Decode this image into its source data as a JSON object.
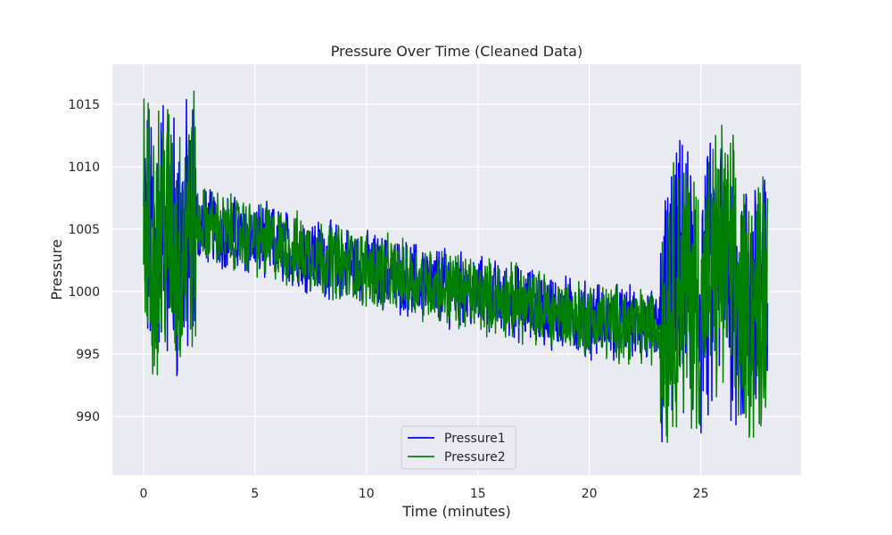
{
  "chart_data": {
    "type": "line",
    "title": "Pressure Over Time (Cleaned Data)",
    "xlabel": "Time (minutes)",
    "ylabel": "Pressure",
    "xlim": [
      -1.4,
      29.5
    ],
    "ylim": [
      985.3,
      1018.2
    ],
    "x_ticks": [
      0,
      5,
      10,
      15,
      20,
      25
    ],
    "y_ticks": [
      990,
      995,
      1000,
      1005,
      1010,
      1015
    ],
    "grid": true,
    "legend_position": "lower center",
    "series": [
      {
        "name": "Pressure1",
        "color": "#0000ff",
        "x": [
          0,
          0.5,
          1,
          1.5,
          2,
          2.3,
          3,
          5,
          7.5,
          10,
          12.5,
          15,
          17.5,
          20,
          22.5,
          23.2,
          24,
          25,
          26,
          27,
          28
        ],
        "values": [
          1005,
          1004,
          1006,
          1003,
          1005,
          1005.5,
          1005.2,
          1004.2,
          1003,
          1001.8,
          1000.8,
          999.8,
          998.8,
          997.8,
          997.2,
          997,
          1001,
          999,
          1003,
          998,
          1001
        ]
      },
      {
        "name": "Pressure2",
        "color": "#008000",
        "x": [
          0,
          0.5,
          1,
          1.5,
          2,
          2.3,
          3,
          5,
          7.5,
          10,
          12.5,
          15,
          17.5,
          20,
          22.5,
          23.2,
          24,
          25,
          26,
          27,
          28
        ],
        "values": [
          1005,
          1004,
          1006,
          1003,
          1005,
          1005.5,
          1005.2,
          1004.2,
          1003,
          1001.8,
          1000.8,
          999.8,
          998.8,
          997.8,
          997.2,
          997,
          1001,
          999,
          1003,
          998,
          1001
        ]
      }
    ]
  }
}
